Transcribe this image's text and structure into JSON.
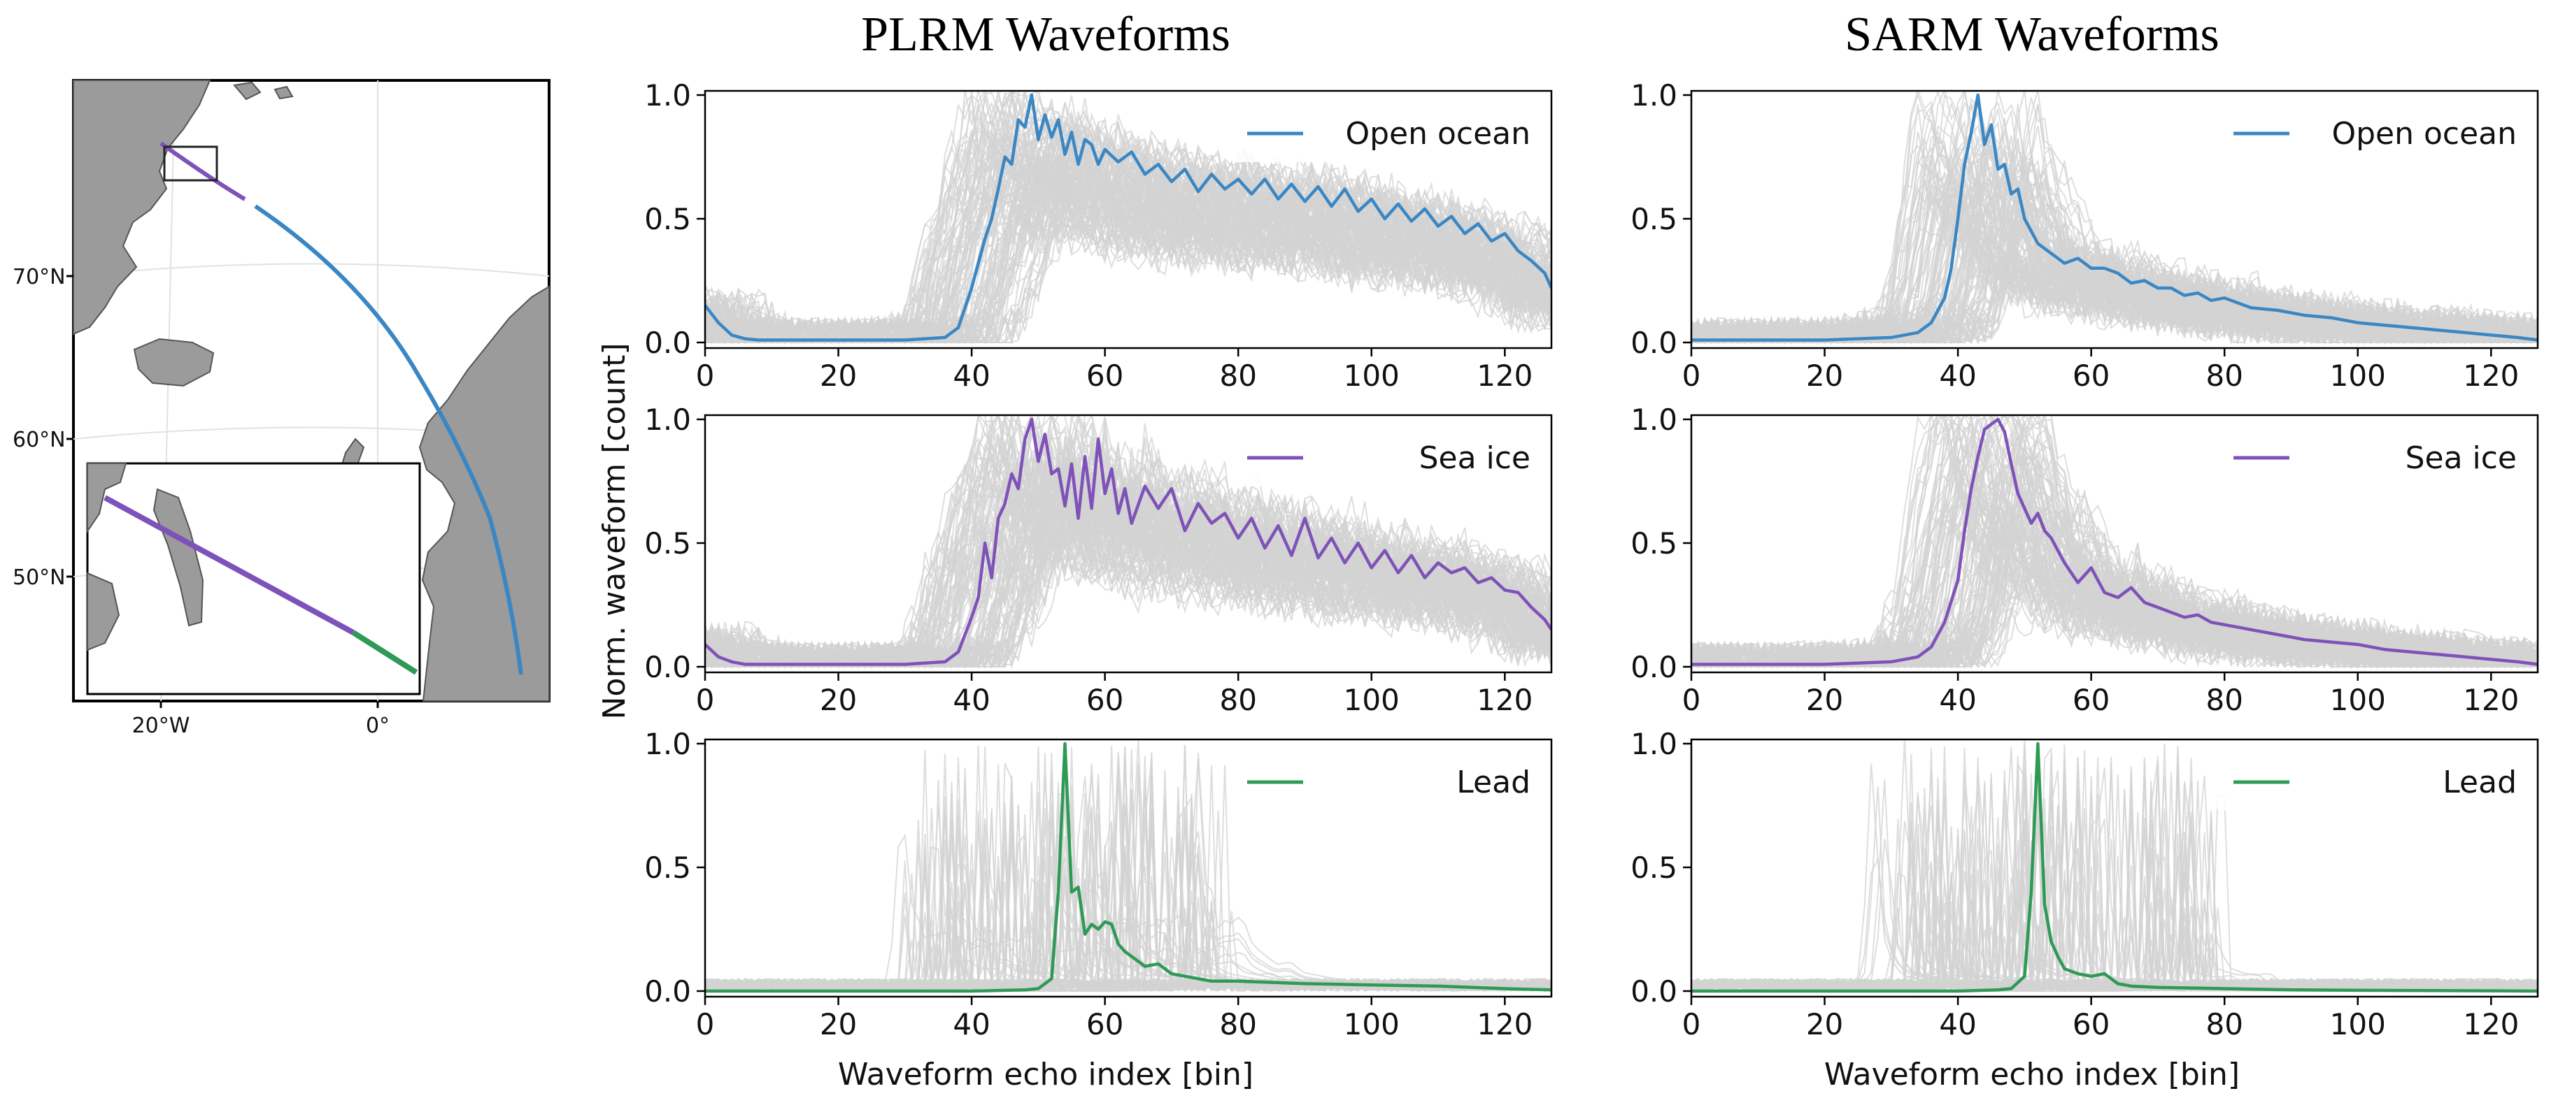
{
  "figure": {
    "col_titles": [
      "PLRM Waveforms",
      "SARM Waveforms"
    ],
    "xlabel": "Waveform echo index [bin]",
    "ylabel": "Norm. waveform [count]"
  },
  "map": {
    "lat_labels": [
      "70°N",
      "60°N",
      "50°N"
    ],
    "lon_labels": [
      "20°W",
      "0°"
    ],
    "track_colors": {
      "open_ocean": "#3a87c4",
      "sea_ice": "#7e52b8",
      "lead": "#2e9a55"
    },
    "land_color": "#9b9b9b"
  },
  "chart_data": [
    {
      "type": "line",
      "id": "plrm-open-ocean",
      "column": "PLRM Waveforms",
      "legend": "Open ocean",
      "color": "#3a87c4",
      "xlim": [
        0,
        127
      ],
      "ylim": [
        0,
        1
      ],
      "xticks": [
        0,
        20,
        40,
        60,
        80,
        100,
        120
      ],
      "yticks": [
        0.0,
        0.5,
        1.0
      ],
      "background_curves": "grey individual waveforms",
      "series": [
        {
          "name": "Open ocean",
          "x": [
            0,
            2,
            4,
            6,
            8,
            10,
            20,
            30,
            36,
            38,
            40,
            42,
            43,
            44,
            45,
            46,
            47,
            48,
            49,
            50,
            51,
            52,
            53,
            54,
            55,
            56,
            57,
            58,
            59,
            60,
            62,
            64,
            66,
            68,
            70,
            72,
            74,
            76,
            78,
            80,
            82,
            84,
            86,
            88,
            90,
            92,
            94,
            96,
            98,
            100,
            102,
            104,
            106,
            108,
            110,
            112,
            114,
            116,
            118,
            120,
            122,
            124,
            126,
            127
          ],
          "y": [
            0.15,
            0.08,
            0.03,
            0.015,
            0.01,
            0.01,
            0.01,
            0.01,
            0.02,
            0.06,
            0.22,
            0.42,
            0.5,
            0.62,
            0.75,
            0.72,
            0.9,
            0.87,
            1.0,
            0.82,
            0.92,
            0.83,
            0.9,
            0.76,
            0.85,
            0.72,
            0.82,
            0.8,
            0.72,
            0.78,
            0.73,
            0.77,
            0.68,
            0.72,
            0.65,
            0.7,
            0.61,
            0.68,
            0.62,
            0.66,
            0.6,
            0.66,
            0.58,
            0.64,
            0.57,
            0.63,
            0.55,
            0.62,
            0.53,
            0.58,
            0.5,
            0.56,
            0.49,
            0.54,
            0.47,
            0.51,
            0.44,
            0.48,
            0.41,
            0.44,
            0.37,
            0.33,
            0.28,
            0.22
          ]
        }
      ]
    },
    {
      "type": "line",
      "id": "sarm-open-ocean",
      "column": "SARM Waveforms",
      "legend": "Open ocean",
      "color": "#3a87c4",
      "xlim": [
        0,
        127
      ],
      "ylim": [
        0,
        1
      ],
      "xticks": [
        0,
        20,
        40,
        60,
        80,
        100,
        120
      ],
      "yticks": [
        0.0,
        0.5,
        1.0
      ],
      "background_curves": "grey individual waveforms",
      "series": [
        {
          "name": "Open ocean",
          "x": [
            0,
            10,
            20,
            30,
            34,
            36,
            38,
            39,
            40,
            41,
            42,
            43,
            44,
            45,
            46,
            47,
            48,
            49,
            50,
            52,
            54,
            56,
            58,
            60,
            62,
            64,
            66,
            68,
            70,
            72,
            74,
            76,
            78,
            80,
            84,
            88,
            92,
            96,
            100,
            104,
            108,
            112,
            116,
            120,
            124,
            127
          ],
          "y": [
            0.01,
            0.01,
            0.01,
            0.02,
            0.04,
            0.08,
            0.18,
            0.3,
            0.5,
            0.72,
            0.85,
            1.0,
            0.8,
            0.88,
            0.7,
            0.72,
            0.6,
            0.62,
            0.5,
            0.4,
            0.36,
            0.32,
            0.34,
            0.3,
            0.3,
            0.28,
            0.24,
            0.25,
            0.22,
            0.22,
            0.19,
            0.2,
            0.17,
            0.18,
            0.14,
            0.13,
            0.11,
            0.1,
            0.08,
            0.07,
            0.06,
            0.05,
            0.04,
            0.03,
            0.02,
            0.01
          ]
        }
      ]
    },
    {
      "type": "line",
      "id": "plrm-sea-ice",
      "column": "PLRM Waveforms",
      "legend": "Sea ice",
      "color": "#7e52b8",
      "xlim": [
        0,
        127
      ],
      "ylim": [
        0,
        1
      ],
      "xticks": [
        0,
        20,
        40,
        60,
        80,
        100,
        120
      ],
      "yticks": [
        0.0,
        0.5,
        1.0
      ],
      "background_curves": "grey individual waveforms",
      "series": [
        {
          "name": "Sea ice",
          "x": [
            0,
            2,
            4,
            6,
            10,
            20,
            30,
            36,
            38,
            40,
            41,
            42,
            43,
            44,
            45,
            46,
            47,
            48,
            49,
            50,
            51,
            52,
            53,
            54,
            55,
            56,
            57,
            58,
            59,
            60,
            61,
            62,
            63,
            64,
            66,
            68,
            70,
            72,
            74,
            76,
            78,
            80,
            82,
            84,
            86,
            88,
            90,
            92,
            94,
            96,
            98,
            100,
            102,
            104,
            106,
            108,
            110,
            112,
            114,
            116,
            118,
            120,
            122,
            124,
            126,
            127
          ],
          "y": [
            0.09,
            0.04,
            0.02,
            0.01,
            0.01,
            0.01,
            0.01,
            0.02,
            0.06,
            0.2,
            0.28,
            0.5,
            0.36,
            0.6,
            0.66,
            0.78,
            0.72,
            0.92,
            1.0,
            0.83,
            0.94,
            0.78,
            0.8,
            0.65,
            0.82,
            0.6,
            0.85,
            0.64,
            0.92,
            0.7,
            0.8,
            0.62,
            0.72,
            0.58,
            0.73,
            0.64,
            0.72,
            0.55,
            0.66,
            0.58,
            0.62,
            0.52,
            0.6,
            0.48,
            0.57,
            0.45,
            0.6,
            0.44,
            0.52,
            0.42,
            0.5,
            0.4,
            0.47,
            0.38,
            0.45,
            0.36,
            0.42,
            0.38,
            0.4,
            0.34,
            0.36,
            0.31,
            0.3,
            0.24,
            0.19,
            0.15
          ]
        }
      ]
    },
    {
      "type": "line",
      "id": "sarm-sea-ice",
      "column": "SARM Waveforms",
      "legend": "Sea ice",
      "color": "#7e52b8",
      "xlim": [
        0,
        127
      ],
      "ylim": [
        0,
        1
      ],
      "xticks": [
        0,
        20,
        40,
        60,
        80,
        100,
        120
      ],
      "yticks": [
        0.0,
        0.5,
        1.0
      ],
      "background_curves": "grey individual waveforms",
      "series": [
        {
          "name": "Sea ice",
          "x": [
            0,
            10,
            20,
            30,
            34,
            36,
            38,
            40,
            41,
            42,
            43,
            44,
            45,
            46,
            47,
            48,
            49,
            50,
            51,
            52,
            53,
            54,
            56,
            58,
            60,
            62,
            64,
            66,
            68,
            70,
            72,
            74,
            76,
            78,
            80,
            84,
            88,
            92,
            96,
            100,
            104,
            108,
            112,
            116,
            120,
            124,
            127
          ],
          "y": [
            0.01,
            0.01,
            0.01,
            0.02,
            0.04,
            0.08,
            0.18,
            0.35,
            0.55,
            0.72,
            0.85,
            0.96,
            0.98,
            1.0,
            0.95,
            0.82,
            0.7,
            0.64,
            0.58,
            0.62,
            0.55,
            0.52,
            0.42,
            0.34,
            0.4,
            0.3,
            0.28,
            0.32,
            0.26,
            0.24,
            0.22,
            0.2,
            0.21,
            0.18,
            0.17,
            0.15,
            0.13,
            0.11,
            0.1,
            0.09,
            0.07,
            0.06,
            0.05,
            0.04,
            0.03,
            0.02,
            0.01
          ]
        }
      ]
    },
    {
      "type": "line",
      "id": "plrm-lead",
      "column": "PLRM Waveforms",
      "legend": "Lead",
      "color": "#2e9a55",
      "xlim": [
        0,
        127
      ],
      "ylim": [
        0,
        1
      ],
      "xticks": [
        0,
        20,
        40,
        60,
        80,
        100,
        120
      ],
      "yticks": [
        0.0,
        0.5,
        1.0
      ],
      "background_curves": "grey individual waveforms",
      "series": [
        {
          "name": "Lead",
          "x": [
            0,
            10,
            20,
            30,
            40,
            48,
            50,
            52,
            53,
            54,
            55,
            56,
            57,
            58,
            59,
            60,
            61,
            62,
            63,
            64,
            66,
            68,
            70,
            72,
            74,
            76,
            80,
            90,
            100,
            110,
            120,
            127
          ],
          "y": [
            0.0,
            0.0,
            0.0,
            0.0,
            0.0,
            0.005,
            0.01,
            0.05,
            0.4,
            1.0,
            0.4,
            0.42,
            0.23,
            0.27,
            0.25,
            0.28,
            0.27,
            0.19,
            0.16,
            0.14,
            0.1,
            0.11,
            0.07,
            0.06,
            0.05,
            0.04,
            0.04,
            0.03,
            0.025,
            0.02,
            0.01,
            0.005
          ]
        }
      ]
    },
    {
      "type": "line",
      "id": "sarm-lead",
      "column": "SARM Waveforms",
      "legend": "Lead",
      "color": "#2e9a55",
      "xlim": [
        0,
        127
      ],
      "ylim": [
        0,
        1
      ],
      "xticks": [
        0,
        20,
        40,
        60,
        80,
        100,
        120
      ],
      "yticks": [
        0.0,
        0.5,
        1.0
      ],
      "background_curves": "grey individual waveforms",
      "series": [
        {
          "name": "Lead",
          "x": [
            0,
            10,
            20,
            30,
            40,
            46,
            48,
            50,
            51,
            52,
            53,
            54,
            55,
            56,
            58,
            60,
            62,
            64,
            66,
            70,
            80,
            90,
            100,
            110,
            120,
            127
          ],
          "y": [
            0.0,
            0.0,
            0.0,
            0.0,
            0.0,
            0.005,
            0.01,
            0.06,
            0.4,
            1.0,
            0.35,
            0.2,
            0.14,
            0.09,
            0.07,
            0.06,
            0.07,
            0.03,
            0.02,
            0.015,
            0.01,
            0.005,
            0.003,
            0.002,
            0.001,
            0.0
          ]
        }
      ]
    }
  ]
}
